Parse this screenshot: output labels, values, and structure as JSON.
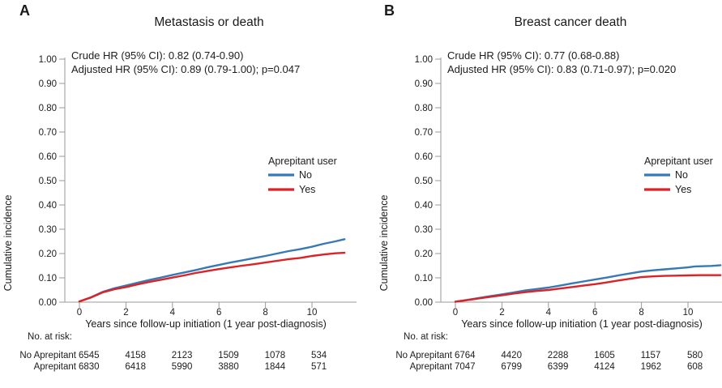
{
  "figure": {
    "background": "#ffffff",
    "axis_color": "#9a9a9a",
    "text_color": "#1c1c1c"
  },
  "chart_data": [
    {
      "panel_letter": "A",
      "type": "line",
      "title": "Metastasis or death",
      "annotations": [
        "Crude HR (95% CI): 0.82 (0.74-0.90)",
        "Adjusted HR (95% CI): 0.89 (0.79-1.00); p=0.047"
      ],
      "xlabel": "Years since follow-up initiation (1 year post-diagnosis)",
      "ylabel": "Cumulative incidence",
      "xlim": [
        0,
        11.9
      ],
      "ylim": [
        0,
        1.0
      ],
      "x_ticks": [
        0,
        2,
        4,
        6,
        8,
        10
      ],
      "y_ticks": [
        "0.00",
        "0.10",
        "0.20",
        "0.30",
        "0.40",
        "0.50",
        "0.60",
        "0.70",
        "0.80",
        "0.90",
        "1.00"
      ],
      "grid": false,
      "legend": {
        "title": "Aprepitant user",
        "position": "right-center"
      },
      "series": [
        {
          "name": "No",
          "color": "#3679b5",
          "x": [
            0,
            0.5,
            1,
            1.5,
            2,
            2.5,
            3,
            3.5,
            4,
            4.5,
            5,
            5.5,
            6,
            6.5,
            7,
            7.5,
            8,
            8.5,
            9,
            9.5,
            10,
            10.5,
            11,
            11.4
          ],
          "y": [
            0.003,
            0.02,
            0.042,
            0.057,
            0.068,
            0.08,
            0.091,
            0.101,
            0.112,
            0.122,
            0.132,
            0.143,
            0.153,
            0.163,
            0.172,
            0.181,
            0.19,
            0.2,
            0.21,
            0.218,
            0.228,
            0.24,
            0.25,
            0.259
          ]
        },
        {
          "name": "Yes",
          "color": "#dc2226",
          "x": [
            0,
            0.5,
            1,
            1.5,
            2,
            2.5,
            3,
            3.5,
            4,
            4.5,
            5,
            5.5,
            6,
            6.5,
            7,
            7.5,
            8,
            8.5,
            9,
            9.5,
            10,
            10.5,
            11,
            11.4
          ],
          "y": [
            0.003,
            0.019,
            0.04,
            0.053,
            0.062,
            0.073,
            0.083,
            0.092,
            0.101,
            0.11,
            0.12,
            0.128,
            0.136,
            0.143,
            0.15,
            0.156,
            0.163,
            0.17,
            0.177,
            0.182,
            0.19,
            0.196,
            0.201,
            0.203
          ]
        }
      ],
      "risk_table": {
        "header": "No. at risk:",
        "years": [
          0,
          2,
          4,
          6,
          8,
          10
        ],
        "rows": [
          {
            "label": "No Aprepitant",
            "values": [
              "6545",
              "4158",
              "2123",
              "1509",
              "1078",
              "534"
            ]
          },
          {
            "label": "Aprepitant",
            "values": [
              "6830",
              "6418",
              "5990",
              "3880",
              "1844",
              "571"
            ]
          }
        ]
      }
    },
    {
      "panel_letter": "B",
      "type": "line",
      "title": "Breast cancer death",
      "annotations": [
        "Crude HR (95% CI): 0.77 (0.68-0.88)",
        "Adjusted HR (95% CI): 0.83 (0.71-0.97); p=0.020"
      ],
      "xlabel": "Years since follow-up initiation (1 year post-diagnosis)",
      "ylabel": "Cumulative incidence",
      "xlim": [
        0,
        11.9
      ],
      "ylim": [
        0,
        1.0
      ],
      "x_ticks": [
        0,
        2,
        4,
        6,
        8,
        10
      ],
      "y_ticks": [
        "0.00",
        "0.10",
        "0.20",
        "0.30",
        "0.40",
        "0.50",
        "0.60",
        "0.70",
        "0.80",
        "0.90",
        "1.00"
      ],
      "grid": false,
      "legend": {
        "title": "Aprepitant user",
        "position": "right-center"
      },
      "series": [
        {
          "name": "No",
          "color": "#3679b5",
          "x": [
            0,
            0.5,
            1,
            1.5,
            2,
            2.5,
            3,
            3.5,
            4,
            4.5,
            5,
            5.5,
            6,
            6.5,
            7,
            7.5,
            8,
            8.5,
            9,
            9.5,
            10,
            10.3,
            11,
            11.4
          ],
          "y": [
            0.002,
            0.009,
            0.017,
            0.025,
            0.032,
            0.04,
            0.048,
            0.054,
            0.06,
            0.068,
            0.077,
            0.085,
            0.093,
            0.101,
            0.11,
            0.118,
            0.126,
            0.131,
            0.135,
            0.139,
            0.143,
            0.147,
            0.149,
            0.152
          ]
        },
        {
          "name": "Yes",
          "color": "#dc2226",
          "x": [
            0,
            0.5,
            1,
            1.5,
            2,
            2.5,
            3,
            3.5,
            4,
            4.5,
            5,
            5.5,
            6,
            6.5,
            7,
            7.5,
            8,
            8.5,
            9,
            9.5,
            10,
            10.5,
            11,
            11.4
          ],
          "y": [
            0.002,
            0.008,
            0.015,
            0.022,
            0.028,
            0.035,
            0.041,
            0.046,
            0.05,
            0.056,
            0.062,
            0.068,
            0.074,
            0.081,
            0.089,
            0.096,
            0.103,
            0.106,
            0.108,
            0.109,
            0.11,
            0.111,
            0.111,
            0.111
          ]
        }
      ],
      "risk_table": {
        "header": "No. at risk:",
        "years": [
          0,
          2,
          4,
          6,
          8,
          10
        ],
        "rows": [
          {
            "label": "No Aprepitant",
            "values": [
              "6764",
              "4420",
              "2288",
              "1605",
              "1157",
              "580"
            ]
          },
          {
            "label": "Aprepitant",
            "values": [
              "7047",
              "6799",
              "6399",
              "4124",
              "1962",
              "608"
            ]
          }
        ]
      }
    }
  ]
}
